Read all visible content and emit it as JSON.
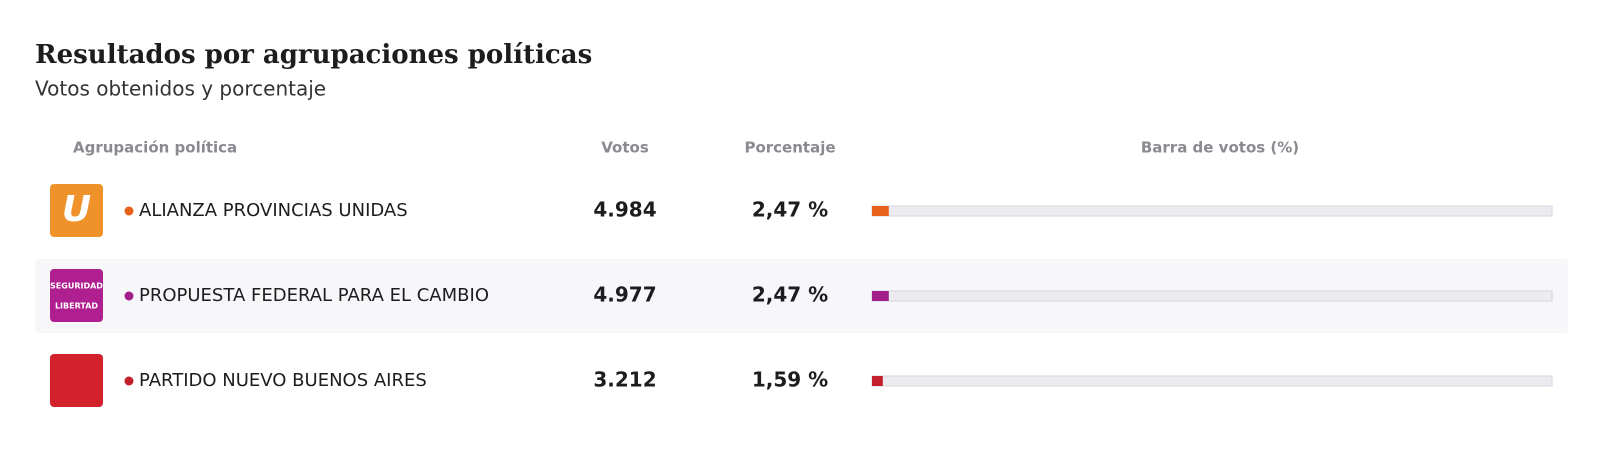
{
  "header": {
    "title": "Resultados por agrupaciones políticas",
    "subtitle": "Votos obtenidos y porcentaje"
  },
  "table": {
    "columns": [
      "Agrupación política",
      "Votos",
      "Porcentaje",
      "Barra de votos (%)"
    ],
    "xlim": [
      0,
      100
    ],
    "rows": [
      {
        "name": "ALIANZA PROVINCIAS UNIDAS",
        "votes": "4.984",
        "percent": 2.47,
        "percent_label": "2,47 %",
        "color": "#e8621a",
        "logo_color": "#f0922a",
        "logo_text": [
          "U"
        ]
      },
      {
        "name": "PROPUESTA FEDERAL PARA EL CAMBIO",
        "votes": "4.977",
        "percent": 2.47,
        "percent_label": "2,47 %",
        "color": "#a3208c",
        "logo_color": "#b01f8f",
        "logo_text": [
          "SEGURIDAD",
          "LIBERTAD"
        ]
      },
      {
        "name": "PARTIDO NUEVO BUENOS AIRES",
        "votes": "3.212",
        "percent": 1.59,
        "percent_label": "1,59 %",
        "color": "#c2202c",
        "logo_color": "#d3212c",
        "logo_text": []
      }
    ]
  }
}
